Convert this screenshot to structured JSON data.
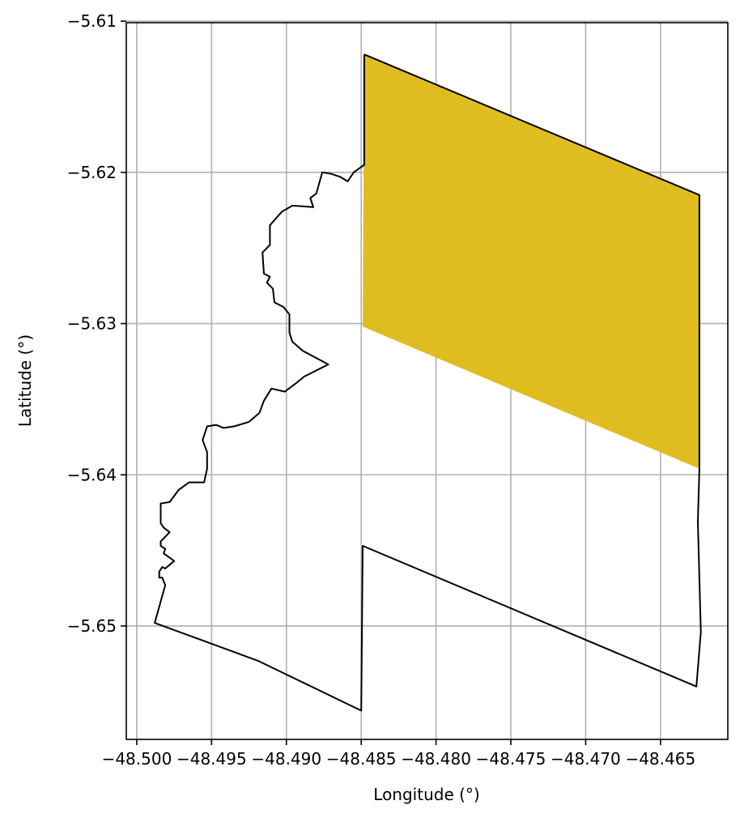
{
  "chart_data": {
    "type": "map",
    "xlabel": "Longitude (°)",
    "ylabel": "Latitude (°)",
    "xlim": [
      -48.5007,
      -48.4605
    ],
    "ylim": [
      -5.6575,
      -5.6101
    ],
    "grid": true,
    "x_ticks": [
      -48.5,
      -48.495,
      -48.49,
      -48.485,
      -48.48,
      -48.475,
      -48.47,
      -48.465
    ],
    "x_tick_labels": [
      "−48.500",
      "−48.495",
      "−48.490",
      "−48.485",
      "−48.480",
      "−48.475",
      "−48.470",
      "−48.465"
    ],
    "y_ticks": [
      -5.61,
      -5.62,
      -5.63,
      -5.64,
      -5.65
    ],
    "y_tick_labels": [
      "−5.61",
      "−5.62",
      "−5.63",
      "−5.64",
      "−5.65"
    ],
    "highlight_color": "#dfbd21",
    "outline_color": "#000000",
    "highlighted_region": [
      [
        -48.4848,
        -5.6122
      ],
      [
        -48.4624,
        -5.6215
      ],
      [
        -48.4624,
        -5.6396
      ],
      [
        -48.4849,
        -5.6302
      ]
    ],
    "boundary_outline": [
      [
        -48.4848,
        -5.6122
      ],
      [
        -48.4624,
        -5.6215
      ],
      [
        -48.4624,
        -5.6396
      ],
      [
        -48.4625,
        -5.6431
      ],
      [
        -48.4623,
        -5.6504
      ],
      [
        -48.4626,
        -5.654
      ],
      [
        -48.4849,
        -5.6447
      ],
      [
        -48.485,
        -5.6556
      ],
      [
        -48.4919,
        -5.6523
      ],
      [
        -48.4988,
        -5.6498
      ],
      [
        -48.4981,
        -5.6473
      ],
      [
        -48.4983,
        -5.6468
      ],
      [
        -48.4985,
        -5.6468
      ],
      [
        -48.4985,
        -5.6464
      ],
      [
        -48.4983,
        -5.6461
      ],
      [
        -48.4981,
        -5.6462
      ],
      [
        -48.4975,
        -5.6457
      ],
      [
        -48.4982,
        -5.6452
      ],
      [
        -48.4981,
        -5.6449
      ],
      [
        -48.4984,
        -5.6447
      ],
      [
        -48.4984,
        -5.6444
      ],
      [
        -48.4982,
        -5.6442
      ],
      [
        -48.4978,
        -5.6438
      ],
      [
        -48.4982,
        -5.6435
      ],
      [
        -48.4984,
        -5.6432
      ],
      [
        -48.4984,
        -5.6419
      ],
      [
        -48.4978,
        -5.6418
      ],
      [
        -48.4972,
        -5.641
      ],
      [
        -48.4965,
        -5.6405
      ],
      [
        -48.4955,
        -5.6405
      ],
      [
        -48.4953,
        -5.6396
      ],
      [
        -48.4953,
        -5.6385
      ],
      [
        -48.4956,
        -5.6377
      ],
      [
        -48.4953,
        -5.6368
      ],
      [
        -48.4947,
        -5.6367
      ],
      [
        -48.4942,
        -5.6369
      ],
      [
        -48.4935,
        -5.6368
      ],
      [
        -48.4925,
        -5.6365
      ],
      [
        -48.4918,
        -5.6359
      ],
      [
        -48.4915,
        -5.6351
      ],
      [
        -48.491,
        -5.6343
      ],
      [
        -48.4901,
        -5.6345
      ],
      [
        -48.4893,
        -5.6339
      ],
      [
        -48.4888,
        -5.6335
      ],
      [
        -48.4872,
        -5.6327
      ],
      [
        -48.4889,
        -5.6318
      ],
      [
        -48.4896,
        -5.6312
      ],
      [
        -48.4898,
        -5.6306
      ],
      [
        -48.4898,
        -5.6303
      ],
      [
        -48.4898,
        -5.6294
      ],
      [
        -48.4902,
        -5.6289
      ],
      [
        -48.4908,
        -5.6286
      ],
      [
        -48.4909,
        -5.6277
      ],
      [
        -48.4913,
        -5.6273
      ],
      [
        -48.4911,
        -5.6269
      ],
      [
        -48.4915,
        -5.6267
      ],
      [
        -48.4916,
        -5.6253
      ],
      [
        -48.4911,
        -5.6248
      ],
      [
        -48.4911,
        -5.6235
      ],
      [
        -48.4903,
        -5.6226
      ],
      [
        -48.4896,
        -5.6222
      ],
      [
        -48.4882,
        -5.6223
      ],
      [
        -48.4884,
        -5.6217
      ],
      [
        -48.488,
        -5.6214
      ],
      [
        -48.4878,
        -5.6207
      ],
      [
        -48.4876,
        -5.62
      ],
      [
        -48.487,
        -5.6201
      ],
      [
        -48.4864,
        -5.6203
      ],
      [
        -48.4859,
        -5.6206
      ],
      [
        -48.4855,
        -5.62
      ],
      [
        -48.4848,
        -5.6195
      ],
      [
        -48.4848,
        -5.6122
      ]
    ]
  }
}
